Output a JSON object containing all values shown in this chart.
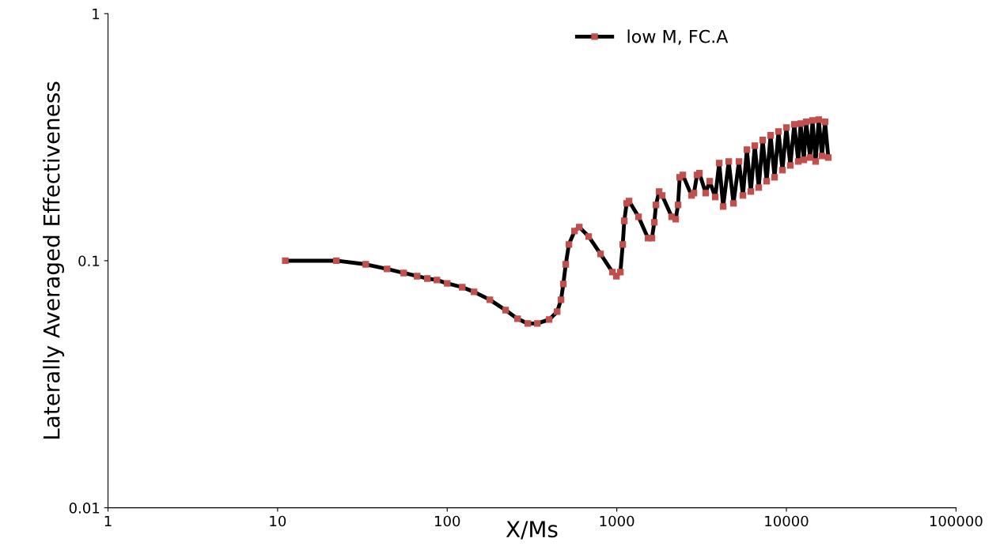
{
  "chart_data": {
    "type": "line",
    "xlabel": "X/Ms",
    "ylabel": "Laterally Averaged Effectiveness",
    "log": "xy",
    "xlim": [
      1,
      100000
    ],
    "ylim": [
      0.01,
      1
    ],
    "xticks": [
      1,
      10,
      100,
      1000,
      10000,
      100000
    ],
    "yticks": [
      0.01,
      0.1,
      1
    ],
    "grid": false,
    "legend": "top right",
    "marker": "square",
    "line_style": "solid",
    "series": [
      {
        "name": "low M, FC.A",
        "color": "#c0504d",
        "x": [
          11.1,
          22.2,
          33.1,
          44.2,
          55.4,
          66.5,
          76.4,
          87.0,
          100,
          122.7,
          144,
          178.5,
          221,
          260,
          299,
          340,
          399,
          445,
          469,
          484,
          500,
          522,
          563,
          601,
          683,
          802,
          943,
          995,
          1050,
          1084,
          1107,
          1143,
          1181,
          1343,
          1528,
          1611,
          1664,
          1702,
          1776,
          1852,
          2107,
          2225,
          2297,
          2349,
          2450,
          2759,
          2850,
          2973,
          3070,
          3343,
          3530,
          3805,
          4018,
          4238,
          4571,
          4875,
          5253,
          5543,
          5848,
          6170,
          6511,
          6870,
          7248,
          7648,
          8069,
          8514,
          8983,
          9478,
          10000,
          10550,
          11130,
          11750,
          12130,
          12670,
          13080,
          13800,
          14260,
          14870,
          15520,
          16200,
          16900,
          17660
        ],
        "values": [
          0.1,
          0.1,
          0.0967,
          0.0926,
          0.0892,
          0.0866,
          0.0847,
          0.0835,
          0.081,
          0.0781,
          0.0748,
          0.0695,
          0.0631,
          0.0582,
          0.0557,
          0.0557,
          0.0578,
          0.0622,
          0.0695,
          0.0805,
          0.0967,
          0.1164,
          0.1318,
          0.1368,
          0.1253,
          0.1065,
          0.0899,
          0.0866,
          0.0899,
          0.1164,
          0.145,
          0.1706,
          0.1744,
          0.1506,
          0.1234,
          0.1234,
          0.143,
          0.1681,
          0.1905,
          0.1837,
          0.1506,
          0.1472,
          0.1681,
          0.2177,
          0.2224,
          0.1837,
          0.1879,
          0.2224,
          0.2259,
          0.1879,
          0.2098,
          0.181,
          0.2485,
          0.1657,
          0.2521,
          0.1706,
          0.2521,
          0.1837,
          0.2815,
          0.1905,
          0.2922,
          0.1977,
          0.3079,
          0.2098,
          0.3217,
          0.2177,
          0.3336,
          0.2325,
          0.3461,
          0.2429,
          0.3565,
          0.2521,
          0.359,
          0.256,
          0.3646,
          0.2617,
          0.3698,
          0.2521,
          0.3726,
          0.2655,
          0.3646,
          0.2617
        ]
      }
    ]
  }
}
